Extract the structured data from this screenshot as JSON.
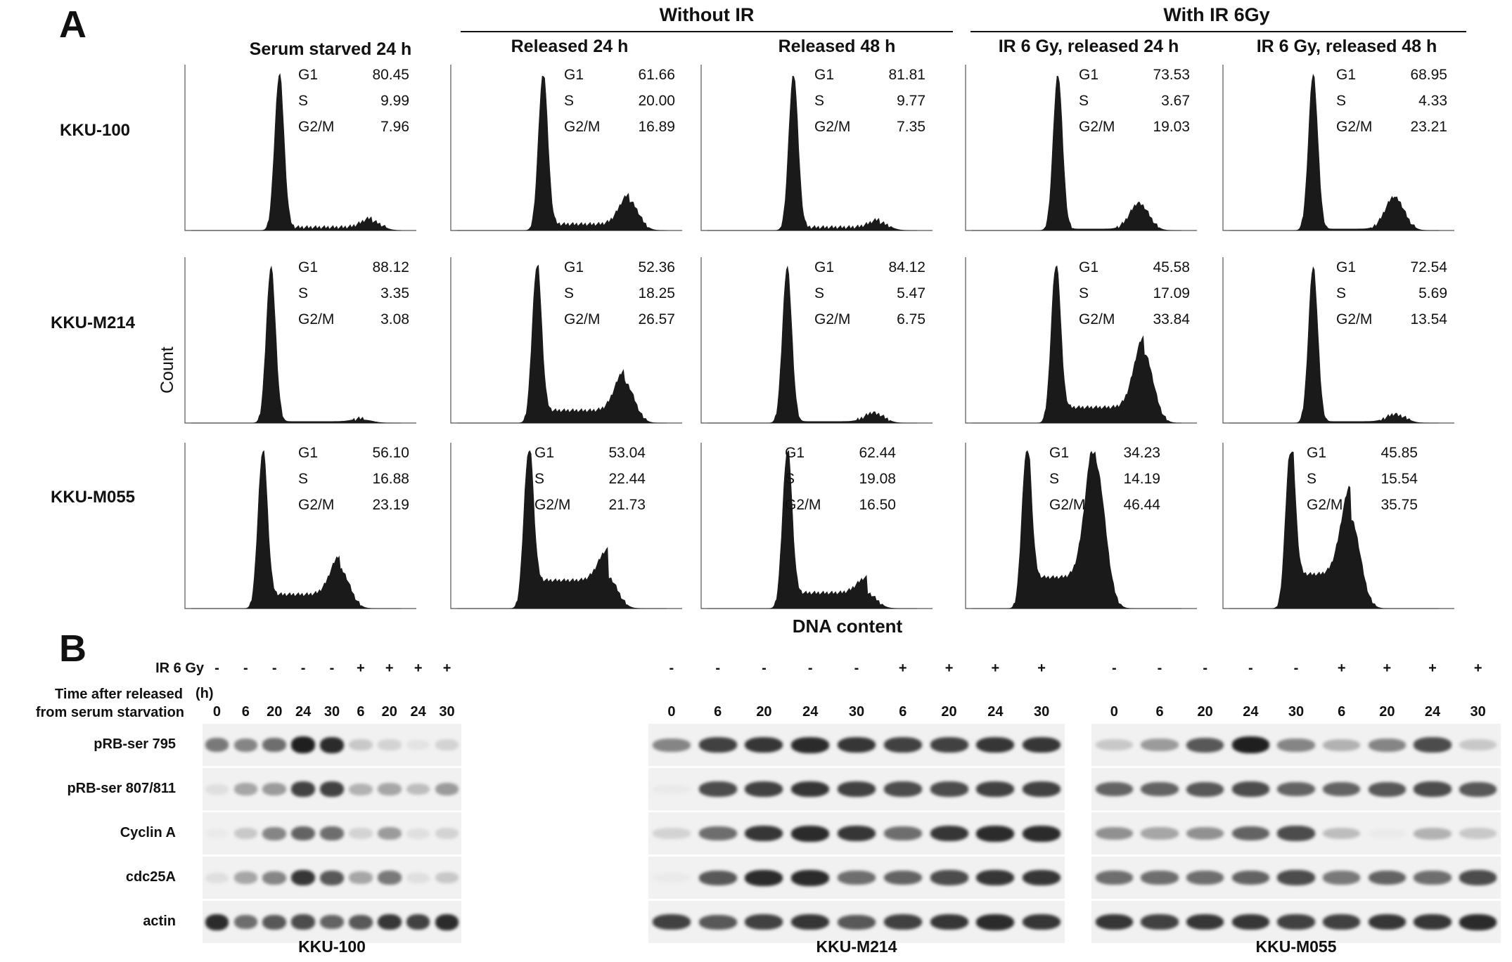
{
  "panel_a": {
    "letter": "A",
    "group_without_ir": "Without IR",
    "group_with_ir": "With IR 6Gy",
    "columns": [
      "Serum starved 24 h",
      "Released 24 h",
      "Released 48 h",
      "IR 6 Gy, released 24 h",
      "IR 6 Gy, released 48 h"
    ],
    "rows": [
      "KKU-100",
      "KKU-M214",
      "KKU-M055"
    ],
    "y_label": "Count",
    "x_label": "DNA content",
    "stats_labels": [
      "G1",
      "S",
      "G2/M"
    ],
    "histograms": [
      [
        {
          "G1": "80.45",
          "S": "9.99",
          "G2M": "7.96"
        },
        {
          "G1": "61.66",
          "S": "20.00",
          "G2M": "16.89"
        },
        {
          "G1": "81.81",
          "S": "9.77",
          "G2M": "7.35"
        },
        {
          "G1": "73.53",
          "S": "3.67",
          "G2M": "19.03"
        },
        {
          "G1": "68.95",
          "S": "4.33",
          "G2M": "23.21"
        }
      ],
      [
        {
          "G1": "88.12",
          "S": "3.35",
          "G2M": "3.08"
        },
        {
          "G1": "52.36",
          "S": "18.25",
          "G2M": "26.57"
        },
        {
          "G1": "84.12",
          "S": "5.47",
          "G2M": "6.75"
        },
        {
          "G1": "45.58",
          "S": "17.09",
          "G2M": "33.84"
        },
        {
          "G1": "72.54",
          "S": "5.69",
          "G2M": "13.54"
        }
      ],
      [
        {
          "G1": "56.10",
          "S": "16.88",
          "G2M": "23.19"
        },
        {
          "G1": "53.04",
          "S": "22.44",
          "G2M": "21.73"
        },
        {
          "G1": "62.44",
          "S": "19.08",
          "G2M": "16.50"
        },
        {
          "G1": "34.23",
          "S": "14.19",
          "G2M": "46.44"
        },
        {
          "G1": "45.85",
          "S": "15.54",
          "G2M": "35.75"
        }
      ]
    ]
  },
  "panel_b": {
    "letter": "B",
    "ir_label": "IR 6 Gy",
    "time_label_line1": "Time after released",
    "time_label_line2": "from serum starvation",
    "unit": "(h)",
    "ir_signs": [
      "-",
      "-",
      "-",
      "-",
      "-",
      "+",
      "+",
      "+",
      "+"
    ],
    "times": [
      "0",
      "6",
      "20",
      "24",
      "30",
      "6",
      "20",
      "24",
      "30"
    ],
    "proteins": [
      "pRB-ser 795",
      "pRB-ser 807/811",
      "Cyclin A",
      "cdc25A",
      "actin"
    ],
    "cell_lines": [
      "KKU-100",
      "KKU-M214",
      "KKU-M055"
    ],
    "band_intensity": [
      [
        [
          0.55,
          0.5,
          0.6,
          0.95,
          0.9,
          0.2,
          0.15,
          0.08,
          0.15
        ],
        [
          0.1,
          0.35,
          0.4,
          0.8,
          0.8,
          0.3,
          0.35,
          0.25,
          0.4
        ],
        [
          0.05,
          0.2,
          0.5,
          0.65,
          0.6,
          0.15,
          0.4,
          0.1,
          0.15
        ],
        [
          0.1,
          0.35,
          0.5,
          0.85,
          0.7,
          0.35,
          0.55,
          0.1,
          0.2
        ],
        [
          0.9,
          0.6,
          0.7,
          0.75,
          0.65,
          0.7,
          0.85,
          0.8,
          0.9
        ]
      ],
      [
        [
          0.5,
          0.8,
          0.85,
          0.9,
          0.85,
          0.8,
          0.8,
          0.85,
          0.85
        ],
        [
          0.05,
          0.75,
          0.8,
          0.85,
          0.8,
          0.75,
          0.75,
          0.8,
          0.8
        ],
        [
          0.15,
          0.6,
          0.85,
          0.9,
          0.85,
          0.6,
          0.85,
          0.9,
          0.9
        ],
        [
          0.05,
          0.7,
          0.9,
          0.9,
          0.6,
          0.65,
          0.75,
          0.85,
          0.85
        ],
        [
          0.8,
          0.7,
          0.8,
          0.85,
          0.7,
          0.8,
          0.85,
          0.9,
          0.85
        ]
      ],
      [
        [
          0.2,
          0.4,
          0.7,
          0.95,
          0.5,
          0.3,
          0.5,
          0.75,
          0.2
        ],
        [
          0.65,
          0.65,
          0.7,
          0.75,
          0.65,
          0.65,
          0.7,
          0.75,
          0.7
        ],
        [
          0.45,
          0.35,
          0.45,
          0.65,
          0.75,
          0.25,
          0.05,
          0.3,
          0.2
        ],
        [
          0.6,
          0.6,
          0.6,
          0.65,
          0.75,
          0.55,
          0.65,
          0.6,
          0.75
        ],
        [
          0.85,
          0.8,
          0.85,
          0.85,
          0.8,
          0.8,
          0.85,
          0.85,
          0.9
        ]
      ]
    ]
  },
  "colors": {
    "ink": "#111111",
    "blot_bg": "#f1f1f1"
  }
}
